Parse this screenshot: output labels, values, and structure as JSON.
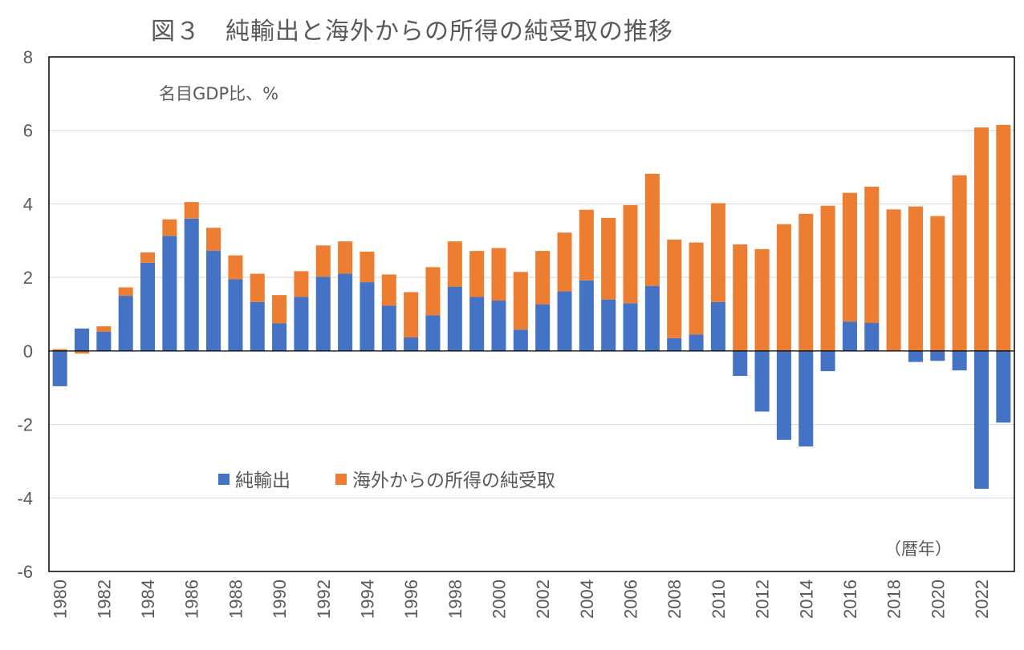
{
  "chart_data": {
    "type": "bar",
    "stacked": true,
    "title": "図３　純輸出と海外からの所得の純受取の推移",
    "unit_note": "名目GDP比、%",
    "xlabel": "（暦年）",
    "ylim": [
      -6,
      8
    ],
    "yticks": [
      -6,
      -4,
      -2,
      0,
      2,
      4,
      6,
      8
    ],
    "grid": true,
    "legend_position": "bottom-left",
    "categories": [
      1980,
      1981,
      1982,
      1983,
      1984,
      1985,
      1986,
      1987,
      1988,
      1989,
      1990,
      1991,
      1992,
      1993,
      1994,
      1995,
      1996,
      1997,
      1998,
      1999,
      2000,
      2001,
      2002,
      2003,
      2004,
      2005,
      2006,
      2007,
      2008,
      2009,
      2010,
      2011,
      2012,
      2013,
      2014,
      2015,
      2016,
      2017,
      2018,
      2019,
      2020,
      2021,
      2022,
      2023
    ],
    "xtick_labels": [
      "1980",
      "1982",
      "1984",
      "1986",
      "1988",
      "1990",
      "1992",
      "1994",
      "1996",
      "1998",
      "2000",
      "2002",
      "2004",
      "2006",
      "2008",
      "2010",
      "2012",
      "2014",
      "2016",
      "2018",
      "2020",
      "2022"
    ],
    "series": [
      {
        "name": "純輸出",
        "color": "#4472C4",
        "values": [
          -0.96,
          0.61,
          0.52,
          1.5,
          2.4,
          3.13,
          3.6,
          2.73,
          1.95,
          1.33,
          0.75,
          1.47,
          2.02,
          2.1,
          1.87,
          1.23,
          0.37,
          0.97,
          1.75,
          1.47,
          1.37,
          0.58,
          1.27,
          1.62,
          1.92,
          1.4,
          1.3,
          1.77,
          0.35,
          0.45,
          1.33,
          -0.68,
          -1.65,
          -2.42,
          -2.6,
          -0.55,
          0.8,
          0.76,
          0.0,
          -0.3,
          -0.27,
          -0.53,
          -3.75,
          -1.95
        ]
      },
      {
        "name": "海外からの所得の純受取",
        "color": "#ED7D31",
        "values": [
          0.05,
          -0.07,
          0.15,
          0.23,
          0.28,
          0.45,
          0.45,
          0.62,
          0.65,
          0.77,
          0.77,
          0.7,
          0.85,
          0.88,
          0.83,
          0.85,
          1.23,
          1.31,
          1.23,
          1.25,
          1.43,
          1.57,
          1.45,
          1.6,
          1.92,
          2.22,
          2.67,
          3.05,
          2.68,
          2.5,
          2.69,
          2.9,
          2.77,
          3.45,
          3.73,
          3.95,
          3.5,
          3.71,
          3.85,
          3.93,
          3.67,
          4.78,
          6.08,
          6.15
        ]
      }
    ]
  }
}
